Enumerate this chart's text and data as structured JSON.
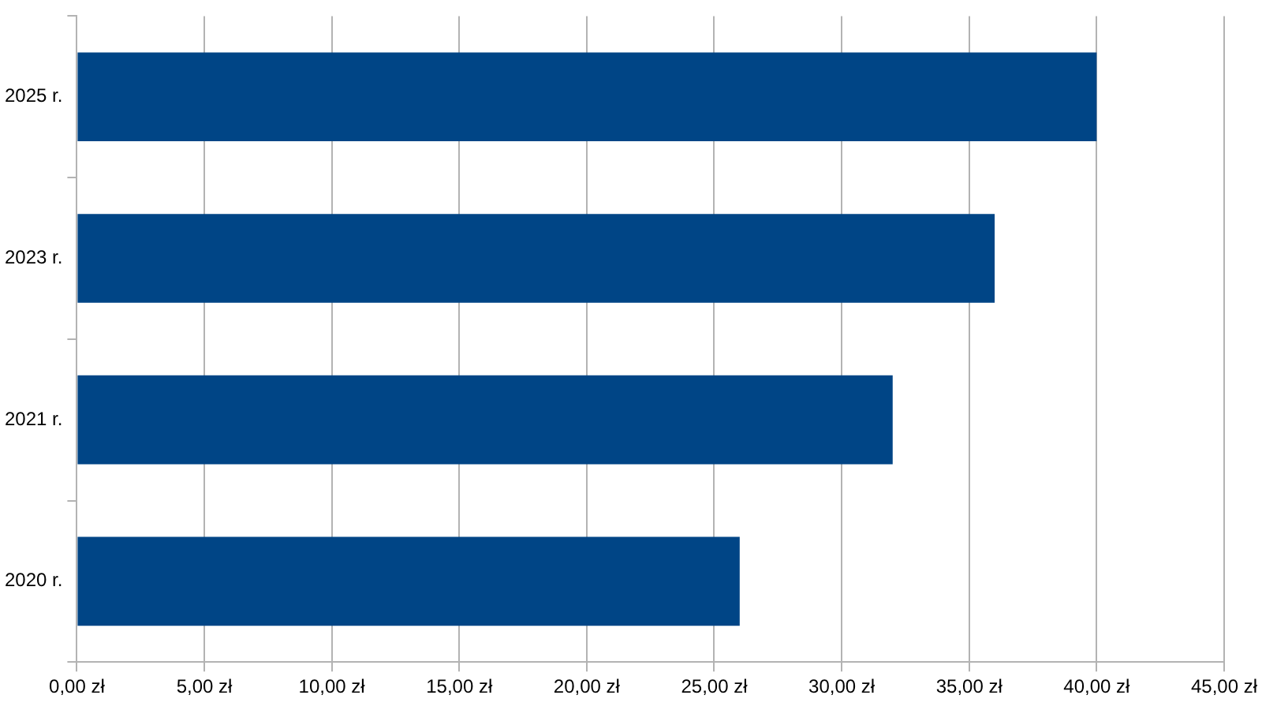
{
  "chart_data": {
    "type": "bar",
    "orientation": "horizontal",
    "categories": [
      "2025 r.",
      "2023 r.",
      "2021 r.",
      "2020 r."
    ],
    "values": [
      40,
      36,
      32,
      26
    ],
    "color": "#004586",
    "xlim": [
      0,
      45
    ],
    "xticks": [
      {
        "value": 0,
        "label": "0,00 zł"
      },
      {
        "value": 5,
        "label": "5,00 zł"
      },
      {
        "value": 10,
        "label": "10,00 zł"
      },
      {
        "value": 15,
        "label": "15,00 zł"
      },
      {
        "value": 20,
        "label": "20,00 zł"
      },
      {
        "value": 25,
        "label": "25,00 zł"
      },
      {
        "value": 30,
        "label": "30,00 zł"
      },
      {
        "value": 35,
        "label": "35,00 zł"
      },
      {
        "value": 40,
        "label": "40,00 zł"
      },
      {
        "value": 45,
        "label": "45,00 zł"
      }
    ],
    "grid": "x",
    "legend": false
  }
}
